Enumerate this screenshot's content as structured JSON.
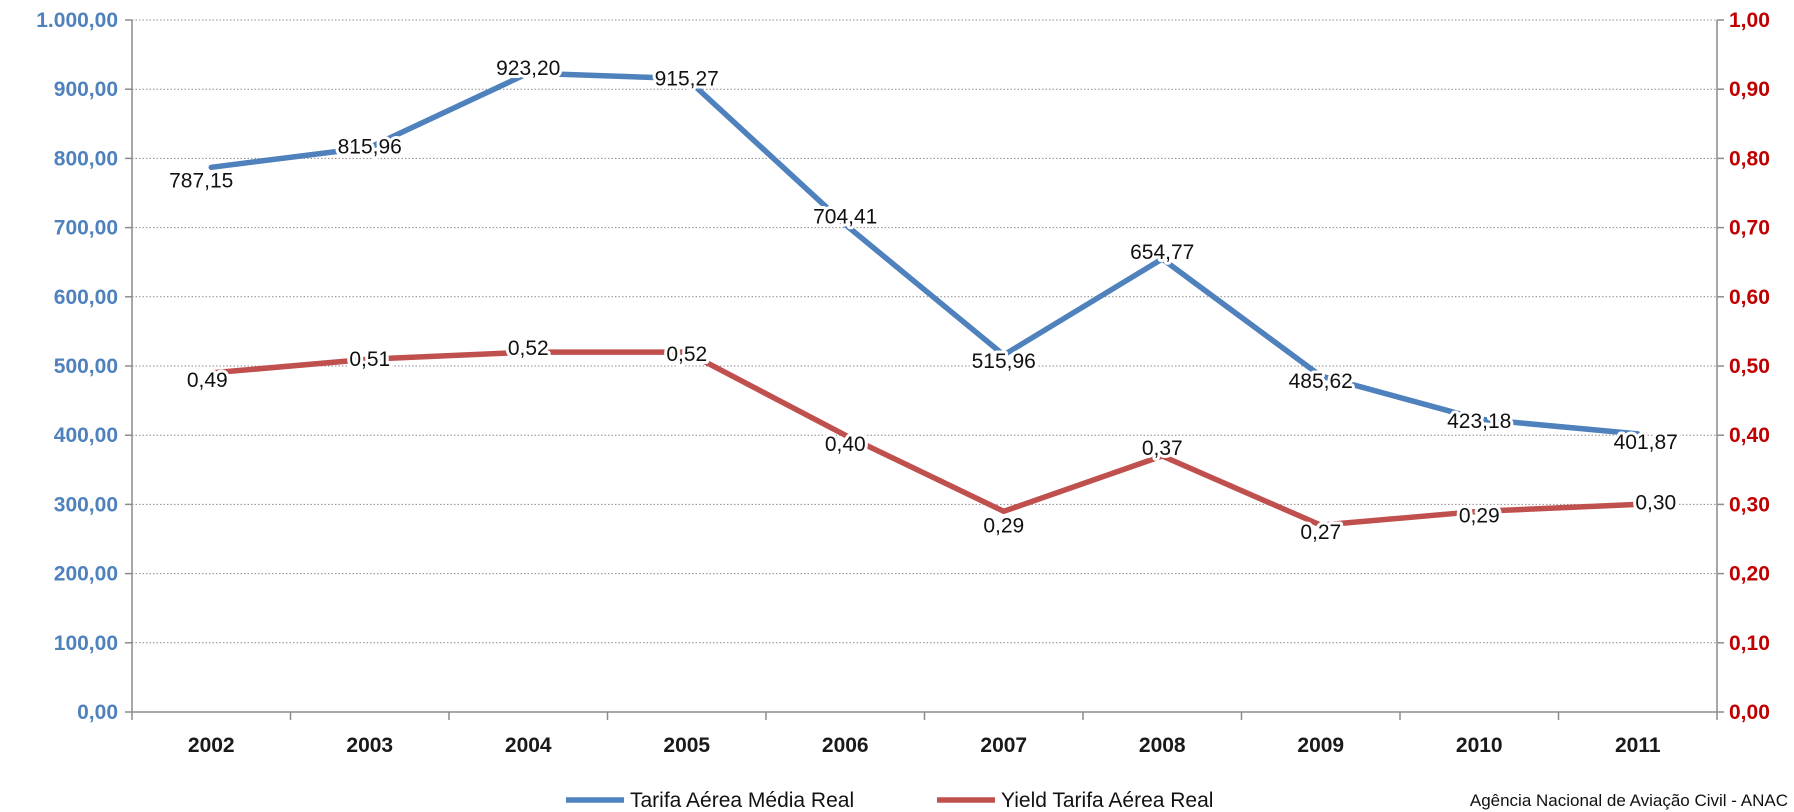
{
  "chart_data": {
    "type": "line",
    "categories": [
      "2002",
      "2003",
      "2004",
      "2005",
      "2006",
      "2007",
      "2008",
      "2009",
      "2010",
      "2011"
    ],
    "series": [
      {
        "name": "Tarifa Aérea Média Real",
        "axis": "left",
        "color": "#4f81bd",
        "values": [
          787.15,
          815.96,
          923.2,
          915.27,
          704.41,
          515.96,
          654.77,
          485.62,
          423.18,
          401.87
        ],
        "labels": [
          "787,15",
          "815,96",
          "923,20",
          "915,27",
          "704,41",
          "515,96",
          "654,77",
          "485,62",
          "423,18",
          "401,87"
        ]
      },
      {
        "name": "Yield Tarifa Aérea Real",
        "axis": "right",
        "color": "#c0504d",
        "values": [
          0.49,
          0.51,
          0.52,
          0.52,
          0.4,
          0.29,
          0.37,
          0.27,
          0.29,
          0.3
        ],
        "labels": [
          "0,49",
          "0,51",
          "0,52",
          "0,52",
          "0,40",
          "0,29",
          "0,37",
          "0,27",
          "0,29",
          "0,30"
        ]
      }
    ],
    "y_left": {
      "lim": [
        0,
        1000
      ],
      "ticks": [
        "0,00",
        "100,00",
        "200,00",
        "300,00",
        "400,00",
        "500,00",
        "600,00",
        "700,00",
        "800,00",
        "900,00",
        "1.000,00"
      ],
      "color": "#4f81bd"
    },
    "y_right": {
      "lim": [
        0,
        1
      ],
      "ticks": [
        "0,00",
        "0,10",
        "0,20",
        "0,30",
        "0,40",
        "0,50",
        "0,60",
        "0,70",
        "0,80",
        "0,90",
        "1,00"
      ],
      "color": "#c00000"
    },
    "grid": true,
    "legend": "bottom-center"
  },
  "source_note": "Agência Nacional de Aviação Civil - ANAC"
}
